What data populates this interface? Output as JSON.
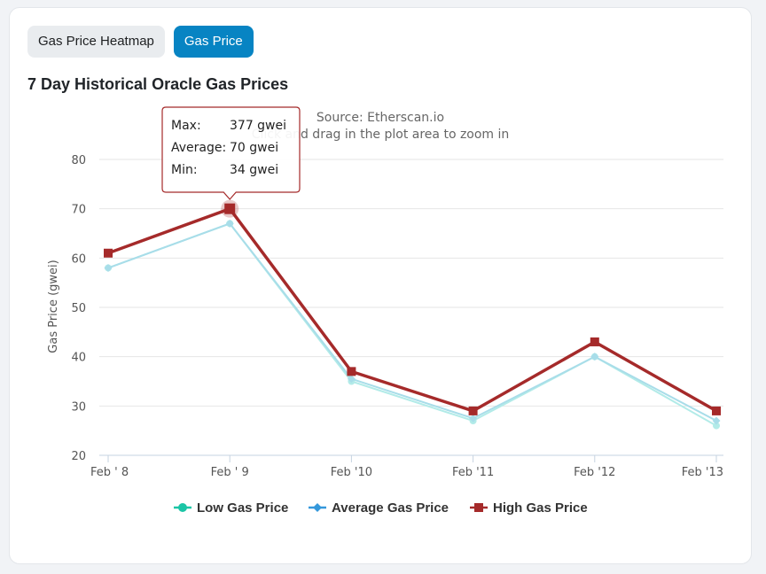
{
  "tabs": [
    {
      "label": "Gas Price Heatmap",
      "active": false
    },
    {
      "label": "Gas Price",
      "active": true
    }
  ],
  "chart_title": "7 Day Historical Oracle Gas Prices",
  "chart_data": {
    "type": "line",
    "subtitle_source": "Source: Etherscan.io",
    "subtitle_zoom": "Click and drag in the plot area to zoom in",
    "ylabel": "Gas Price (gwei)",
    "xlabel": "",
    "categories": [
      "Feb ' 8",
      "Feb ' 9",
      "Feb '10",
      "Feb '11",
      "Feb '12",
      "Feb '13"
    ],
    "yticks": [
      20,
      30,
      40,
      50,
      60,
      70,
      80
    ],
    "ylim": [
      20,
      80
    ],
    "grid": true,
    "legend_position": "bottom",
    "series": [
      {
        "name": "Low Gas Price",
        "values": [
          58,
          67,
          35,
          27,
          40,
          26
        ],
        "color": "#b2ebe8",
        "legend_color": "#1bc5a6",
        "marker": "circle"
      },
      {
        "name": "Average Gas Price",
        "values": [
          58,
          67,
          35.5,
          27.5,
          40,
          27
        ],
        "color": "#a8dde9",
        "legend_color": "#3498db",
        "marker": "diamond"
      },
      {
        "name": "High Gas Price",
        "values": [
          61,
          70,
          37,
          29,
          43,
          29
        ],
        "color": "#a52a2a",
        "legend_color": "#a52a2a",
        "marker": "square"
      }
    ],
    "tooltip": {
      "category_index": 1,
      "rows": [
        {
          "label": "Max:",
          "value": "377 gwei"
        },
        {
          "label": "Average:",
          "value": "70 gwei"
        },
        {
          "label": "Min:",
          "value": "34 gwei"
        }
      ]
    }
  }
}
